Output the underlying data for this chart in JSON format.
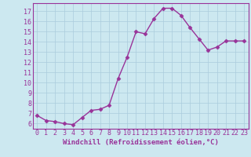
{
  "x": [
    0,
    1,
    2,
    3,
    4,
    5,
    6,
    7,
    8,
    9,
    10,
    11,
    12,
    13,
    14,
    15,
    16,
    17,
    18,
    19,
    20,
    21,
    22,
    23
  ],
  "y": [
    6.8,
    6.3,
    6.2,
    6.0,
    5.9,
    6.6,
    7.3,
    7.4,
    7.8,
    10.4,
    12.5,
    15.0,
    14.8,
    16.3,
    17.3,
    17.3,
    16.6,
    15.4,
    14.3,
    13.2,
    13.5,
    14.1,
    14.1,
    14.1
  ],
  "line_color": "#993399",
  "marker": "D",
  "markersize": 2.5,
  "linewidth": 1.0,
  "bg_color": "#cce8f0",
  "grid_color": "#aaccdd",
  "xlabel": "Windchill (Refroidissement éolien,°C)",
  "xlabel_color": "#993399",
  "xlabel_fontsize": 6.5,
  "tick_color": "#993399",
  "tick_fontsize": 6,
  "ylim": [
    5.5,
    17.8
  ],
  "yticks": [
    6,
    7,
    8,
    9,
    10,
    11,
    12,
    13,
    14,
    15,
    16,
    17
  ],
  "xticks": [
    0,
    1,
    2,
    3,
    4,
    5,
    6,
    7,
    8,
    9,
    10,
    11,
    12,
    13,
    14,
    15,
    16,
    17,
    18,
    19,
    20,
    21,
    22,
    23
  ]
}
